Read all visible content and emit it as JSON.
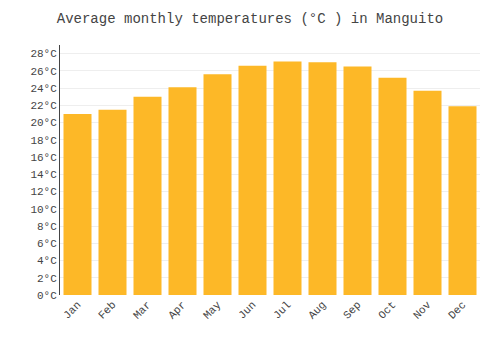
{
  "chart_data": {
    "type": "bar",
    "title": "Average monthly temperatures (°C ) in Manguito",
    "categories": [
      "Jan",
      "Feb",
      "Mar",
      "Apr",
      "May",
      "Jun",
      "Jul",
      "Aug",
      "Sep",
      "Oct",
      "Nov",
      "Dec"
    ],
    "values": [
      21.0,
      21.5,
      23.0,
      24.1,
      25.6,
      26.6,
      27.1,
      27.0,
      26.5,
      25.2,
      23.7,
      21.9
    ],
    "color": "#FDB827",
    "ylim": [
      0,
      29
    ],
    "yticks": [
      {
        "value": 0,
        "label": "0°C"
      },
      {
        "value": 2,
        "label": "2°C"
      },
      {
        "value": 4,
        "label": "4°C"
      },
      {
        "value": 6,
        "label": "6°C"
      },
      {
        "value": 8,
        "label": "8°C"
      },
      {
        "value": 10,
        "label": "10°C"
      },
      {
        "value": 12,
        "label": "12°C"
      },
      {
        "value": 14,
        "label": "14°C"
      },
      {
        "value": 16,
        "label": "16°C"
      },
      {
        "value": 18,
        "label": "18°C"
      },
      {
        "value": 20,
        "label": "20°C"
      },
      {
        "value": 22,
        "label": "22°C"
      },
      {
        "value": 24,
        "label": "24°C"
      },
      {
        "value": 26,
        "label": "26°C"
      },
      {
        "value": 28,
        "label": "28°C"
      }
    ],
    "grid": true
  }
}
